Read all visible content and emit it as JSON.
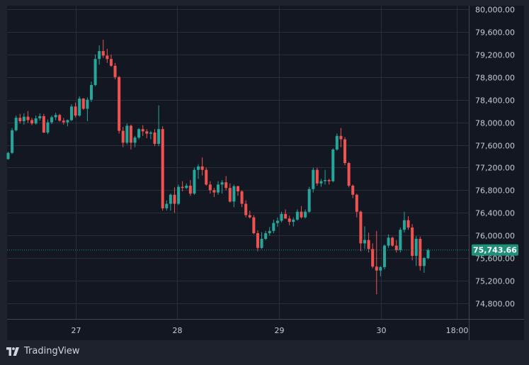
{
  "brand": {
    "name": "TradingView",
    "icon": "tradingview-logo-icon"
  },
  "colors": {
    "up": "#26a69a",
    "down": "#ef5350",
    "background": "#131722",
    "grid": "#2a2e39",
    "badge": "#1f8f7a"
  },
  "chart_data": {
    "type": "candlestick",
    "ylim": [
      74500,
      80000
    ],
    "y_ticks": [
      "80,000.00",
      "79,600.00",
      "79,200.00",
      "78,800.00",
      "78,400.00",
      "78,000.00",
      "77,600.00",
      "77,200.00",
      "76,800.00",
      "76,400.00",
      "76,000.00",
      "75,600.00",
      "75,200.00",
      "74,800.00"
    ],
    "x_ticks": [
      "27",
      "28",
      "29",
      "30",
      "18:00"
    ],
    "current_price": 75743.66,
    "current_price_label": "75,743.66",
    "grid": true,
    "candles": [
      [
        77350,
        77480,
        77340,
        77460
      ],
      [
        77460,
        77900,
        77440,
        77860
      ],
      [
        77860,
        78120,
        77840,
        78080
      ],
      [
        78080,
        78150,
        77980,
        78020
      ],
      [
        78020,
        78160,
        77960,
        78100
      ],
      [
        78100,
        78200,
        77990,
        78040
      ],
      [
        78040,
        78080,
        77950,
        77980
      ],
      [
        77980,
        78120,
        77960,
        78070
      ],
      [
        78070,
        78160,
        78030,
        78110
      ],
      [
        78110,
        78150,
        77810,
        77820
      ],
      [
        77820,
        78050,
        77790,
        78000
      ],
      [
        78000,
        78120,
        77970,
        78090
      ],
      [
        78090,
        78170,
        78040,
        78130
      ],
      [
        78130,
        78150,
        78010,
        78030
      ],
      [
        78030,
        78080,
        77960,
        78000
      ],
      [
        78000,
        78050,
        77930,
        78040
      ],
      [
        78040,
        78320,
        78020,
        78280
      ],
      [
        78280,
        78350,
        78090,
        78120
      ],
      [
        78120,
        78460,
        78100,
        78420
      ],
      [
        78420,
        78430,
        78220,
        78240
      ],
      [
        78240,
        78440,
        78020,
        78400
      ],
      [
        78400,
        78720,
        78360,
        78660
      ],
      [
        78660,
        79200,
        78640,
        79120
      ],
      [
        79120,
        79360,
        79020,
        79260
      ],
      [
        79260,
        79460,
        79140,
        79180
      ],
      [
        79180,
        79300,
        79050,
        79120
      ],
      [
        79120,
        79200,
        78980,
        79000
      ],
      [
        79000,
        79050,
        78760,
        78800
      ],
      [
        78800,
        78820,
        77800,
        77850
      ],
      [
        77850,
        77920,
        77560,
        77640
      ],
      [
        77640,
        77980,
        77610,
        77940
      ],
      [
        77940,
        77960,
        77520,
        77640
      ],
      [
        77640,
        77760,
        77560,
        77730
      ],
      [
        77730,
        77900,
        77700,
        77880
      ],
      [
        77880,
        77950,
        77760,
        77840
      ],
      [
        77840,
        77880,
        77720,
        77800
      ],
      [
        77800,
        77850,
        77700,
        77820
      ],
      [
        77820,
        77880,
        77580,
        77620
      ],
      [
        77620,
        78300,
        77580,
        77880
      ],
      [
        77880,
        77930,
        76440,
        76480
      ],
      [
        76480,
        76620,
        76440,
        76560
      ],
      [
        76560,
        76740,
        76440,
        76720
      ],
      [
        76720,
        76850,
        76400,
        76560
      ],
      [
        76560,
        76900,
        76540,
        76860
      ],
      [
        76860,
        76960,
        76780,
        76840
      ],
      [
        76840,
        76920,
        76820,
        76880
      ],
      [
        76880,
        76980,
        76700,
        76740
      ],
      [
        76740,
        77200,
        76720,
        77160
      ],
      [
        77160,
        77260,
        77000,
        77220
      ],
      [
        77220,
        77380,
        77060,
        77160
      ],
      [
        77160,
        77200,
        76880,
        76900
      ],
      [
        76900,
        76960,
        76740,
        76800
      ],
      [
        76800,
        76840,
        76680,
        76760
      ],
      [
        76760,
        76960,
        76720,
        76900
      ],
      [
        76900,
        76980,
        76740,
        76940
      ],
      [
        76940,
        77050,
        76800,
        76840
      ],
      [
        76840,
        76920,
        76580,
        76600
      ],
      [
        76600,
        76900,
        76500,
        76870
      ],
      [
        76870,
        76880,
        76700,
        76780
      ],
      [
        76780,
        76800,
        76500,
        76560
      ],
      [
        76560,
        76620,
        76320,
        76360
      ],
      [
        76360,
        76440,
        76300,
        76320
      ],
      [
        76320,
        76360,
        76020,
        76040
      ],
      [
        76040,
        76090,
        75720,
        75780
      ],
      [
        75780,
        76060,
        75760,
        75940
      ],
      [
        75940,
        76080,
        75920,
        76040
      ],
      [
        76040,
        76150,
        76000,
        76080
      ],
      [
        76080,
        76280,
        76040,
        76220
      ],
      [
        76220,
        76320,
        76150,
        76260
      ],
      [
        76260,
        76420,
        76230,
        76380
      ],
      [
        76380,
        76460,
        76290,
        76300
      ],
      [
        76300,
        76350,
        76180,
        76240
      ],
      [
        76240,
        76320,
        76160,
        76280
      ],
      [
        76280,
        76460,
        76260,
        76420
      ],
      [
        76420,
        76520,
        76300,
        76320
      ],
      [
        76320,
        76460,
        76300,
        76420
      ],
      [
        76420,
        76860,
        76400,
        76820
      ],
      [
        76820,
        77200,
        76760,
        77160
      ],
      [
        77160,
        77200,
        76880,
        76920
      ],
      [
        76920,
        77000,
        76860,
        76960
      ],
      [
        76960,
        77160,
        76900,
        76980
      ],
      [
        76980,
        77000,
        76900,
        76960
      ],
      [
        76960,
        77540,
        76940,
        77520
      ],
      [
        77520,
        77800,
        77500,
        77760
      ],
      [
        77760,
        77900,
        77560,
        77700
      ],
      [
        77700,
        77740,
        77240,
        77280
      ],
      [
        77280,
        77300,
        76850,
        76880
      ],
      [
        76880,
        76900,
        76660,
        76720
      ],
      [
        76720,
        76740,
        76320,
        76420
      ],
      [
        76420,
        76440,
        75720,
        75860
      ],
      [
        75860,
        76160,
        75760,
        75920
      ],
      [
        75920,
        76050,
        75700,
        75760
      ],
      [
        75760,
        75860,
        75420,
        75450
      ],
      [
        75450,
        76080,
        74960,
        75380
      ],
      [
        75380,
        75460,
        75280,
        75440
      ],
      [
        75440,
        75840,
        75400,
        75820
      ],
      [
        75820,
        76020,
        75780,
        75960
      ],
      [
        75960,
        75980,
        75800,
        75820
      ],
      [
        75820,
        75920,
        75700,
        75740
      ],
      [
        75740,
        76140,
        75700,
        76100
      ],
      [
        76100,
        76420,
        76050,
        76270
      ],
      [
        76270,
        76340,
        76100,
        76140
      ],
      [
        76140,
        76200,
        75560,
        75640
      ],
      [
        75640,
        75990,
        75460,
        75940
      ],
      [
        75940,
        75980,
        75380,
        75460
      ],
      [
        75460,
        75620,
        75340,
        75600
      ],
      [
        75600,
        75770,
        75580,
        75744
      ]
    ]
  }
}
